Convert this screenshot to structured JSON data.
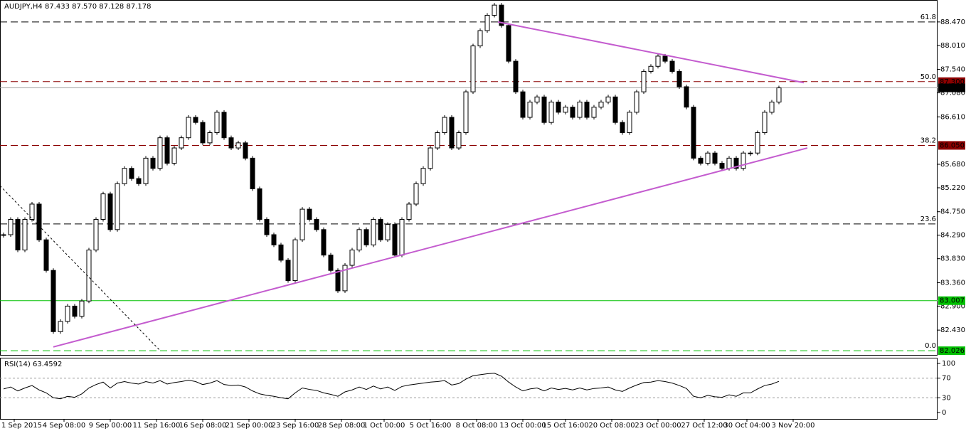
{
  "chart_data": {
    "type": "candlestick",
    "title": "AUDJPY,H4  87.433 87.570 87.128 87.178",
    "closes": [
      84.3,
      84.6,
      84.0,
      84.6,
      84.9,
      84.2,
      83.6,
      82.4,
      82.6,
      82.9,
      82.7,
      83.0,
      84.0,
      84.6,
      85.1,
      84.4,
      85.3,
      85.6,
      85.4,
      85.3,
      85.8,
      85.6,
      86.2,
      85.7,
      86.0,
      86.2,
      86.6,
      86.5,
      86.1,
      86.3,
      86.7,
      86.2,
      86.0,
      86.1,
      85.8,
      85.2,
      84.6,
      84.3,
      84.1,
      83.8,
      83.4,
      84.2,
      84.8,
      84.6,
      84.4,
      83.9,
      83.6,
      83.2,
      83.7,
      84.0,
      84.4,
      84.1,
      84.6,
      84.2,
      84.5,
      83.9,
      84.6,
      84.9,
      85.3,
      85.6,
      86.0,
      86.3,
      86.6,
      86.0,
      86.3,
      87.1,
      88.0,
      88.3,
      88.6,
      88.8,
      88.4,
      87.7,
      87.1,
      86.6,
      86.9,
      87.0,
      86.5,
      86.9,
      86.7,
      86.8,
      86.6,
      86.9,
      86.6,
      86.8,
      86.9,
      87.0,
      86.5,
      86.3,
      86.7,
      87.1,
      87.5,
      87.6,
      87.8,
      87.7,
      87.5,
      87.2,
      86.8,
      85.8,
      85.7,
      85.9,
      85.7,
      85.6,
      85.8,
      85.6,
      85.9,
      85.9,
      86.3,
      86.7,
      86.9,
      87.178
    ],
    "bull_color": "#ffffff",
    "bear_color": "#000000",
    "ylim": [
      81.93,
      88.9
    ],
    "yticks": [
      {
        "value": 88.47,
        "label": "88.470"
      },
      {
        "value": 88.01,
        "label": "88.010"
      },
      {
        "value": 87.54,
        "label": "87.540"
      },
      {
        "value": 87.08,
        "label": "87.080"
      },
      {
        "value": 86.61,
        "label": "86.610"
      },
      {
        "value": 85.68,
        "label": "85.680"
      },
      {
        "value": 85.22,
        "label": "85.220"
      },
      {
        "value": 84.75,
        "label": "84.750"
      },
      {
        "value": 84.29,
        "label": "84.290"
      },
      {
        "value": 83.83,
        "label": "83.830"
      },
      {
        "value": 83.36,
        "label": "83.360"
      },
      {
        "value": 82.9,
        "label": "82.900"
      },
      {
        "value": 82.43,
        "label": "82.430"
      }
    ],
    "levels": [
      {
        "price": 88.47,
        "label": "61.8",
        "color": "#000000",
        "dashed": true
      },
      {
        "price": 87.3,
        "label": "50.0",
        "price_label": "87.300",
        "color": "#8b0000",
        "dashed": true
      },
      {
        "price": 87.178,
        "price_label": "87.178",
        "color": "#a0a0a0",
        "dashed": false
      },
      {
        "price": 86.05,
        "label": "38.2",
        "price_label": "86.050",
        "color": "#8b0000",
        "dashed": true
      },
      {
        "price": 84.51,
        "label": "23.6",
        "color": "#000000",
        "dashed": true
      },
      {
        "price": 83.007,
        "price_label": "83.007",
        "color": "#00c000",
        "dashed": false
      },
      {
        "price": 82.026,
        "label": "0.0",
        "price_label": "82.026",
        "color": "#00c000",
        "dashed": true
      }
    ],
    "trendlines": [
      {
        "from": [
          69.5,
          88.47
        ],
        "to": [
          112.5,
          87.28
        ],
        "color": "#c45ccf",
        "dotted": false
      },
      {
        "from": [
          7,
          82.1
        ],
        "to": [
          113,
          86.0
        ],
        "color": "#c45ccf",
        "dotted": false
      },
      {
        "from": [
          -0.5,
          85.26
        ],
        "to": [
          22,
          82.03
        ],
        "color": "#000000",
        "dotted": true
      }
    ],
    "x_labels": [
      {
        "index": 1.5,
        "label": "1 Sep 2015"
      },
      {
        "index": 8.5,
        "label": "4 Sep 08:00"
      },
      {
        "index": 15,
        "label": "9 Sep 00:00"
      },
      {
        "index": 21.5,
        "label": "11 Sep 16:00"
      },
      {
        "index": 28,
        "label": "16 Sep 08:00"
      },
      {
        "index": 34.5,
        "label": "21 Sep 00:00"
      },
      {
        "index": 41,
        "label": "23 Sep 16:00"
      },
      {
        "index": 47.5,
        "label": "28 Sep 08:00"
      },
      {
        "index": 53.5,
        "label": "1 Oct 00:00"
      },
      {
        "index": 60,
        "label": "5 Oct 16:00"
      },
      {
        "index": 66.5,
        "label": "8 Oct 08:00"
      },
      {
        "index": 73,
        "label": "13 Oct 00:00"
      },
      {
        "index": 79,
        "label": "15 Oct 16:00"
      },
      {
        "index": 85.5,
        "label": "20 Oct 08:00"
      },
      {
        "index": 92,
        "label": "23 Oct 00:00"
      },
      {
        "index": 98.5,
        "label": "27 Oct 12:00"
      },
      {
        "index": 104.5,
        "label": "30 Oct 04:00"
      },
      {
        "index": 111,
        "label": "3 Nov 20:00"
      }
    ],
    "rsi": {
      "title": "RSI(14) 63.4592",
      "color": "#000000",
      "values": [
        48,
        52,
        44,
        50,
        55,
        46,
        40,
        30,
        28,
        33,
        31,
        38,
        50,
        57,
        62,
        50,
        60,
        63,
        60,
        58,
        63,
        60,
        65,
        58,
        61,
        63,
        66,
        63,
        57,
        60,
        65,
        57,
        55,
        56,
        52,
        44,
        38,
        35,
        33,
        30,
        28,
        40,
        50,
        47,
        45,
        40,
        37,
        33,
        42,
        46,
        52,
        47,
        54,
        48,
        52,
        45,
        53,
        56,
        58,
        60,
        62,
        63,
        65,
        56,
        59,
        68,
        75,
        77,
        79,
        80,
        74,
        62,
        52,
        44,
        48,
        50,
        44,
        50,
        47,
        49,
        46,
        50,
        46,
        49,
        50,
        52,
        46,
        43,
        50,
        56,
        61,
        62,
        65,
        63,
        60,
        55,
        49,
        33,
        30,
        35,
        32,
        31,
        36,
        33,
        40,
        40,
        48,
        55,
        58,
        63.4592
      ],
      "ylim": [
        -14.5,
        111.6
      ],
      "yticks": [
        100,
        70,
        30,
        0
      ],
      "levels": [
        70,
        30
      ]
    }
  }
}
